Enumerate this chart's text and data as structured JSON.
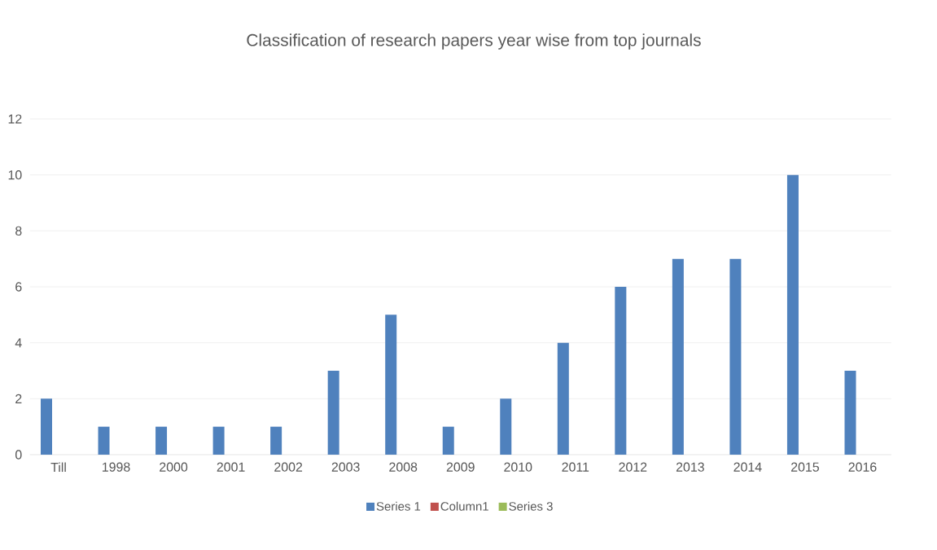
{
  "chart_data": {
    "type": "bar",
    "title": "Classification of research papers year wise from top journals",
    "categories": [
      "Till",
      "1998",
      "2000",
      "2001",
      "2002",
      "2003",
      "2008",
      "2009",
      "2010",
      "2011",
      "2012",
      "2013",
      "2014",
      "2015",
      "2016"
    ],
    "series": [
      {
        "name": "Series 1",
        "color": "#4f81bd",
        "values": [
          2,
          1,
          1,
          1,
          1,
          3,
          5,
          1,
          2,
          4,
          6,
          7,
          7,
          10,
          3
        ]
      },
      {
        "name": "Column1",
        "color": "#c0504d",
        "values": [
          null,
          null,
          null,
          null,
          null,
          null,
          null,
          null,
          null,
          null,
          null,
          null,
          null,
          null,
          null
        ]
      },
      {
        "name": "Series 3",
        "color": "#9bbb59",
        "values": [
          null,
          null,
          null,
          null,
          null,
          null,
          null,
          null,
          null,
          null,
          null,
          null,
          null,
          null,
          null
        ]
      }
    ],
    "ylim": [
      0,
      12
    ],
    "yticks": [
      0,
      2,
      4,
      6,
      8,
      10,
      12
    ],
    "grid": "y",
    "legend": "bottom"
  }
}
